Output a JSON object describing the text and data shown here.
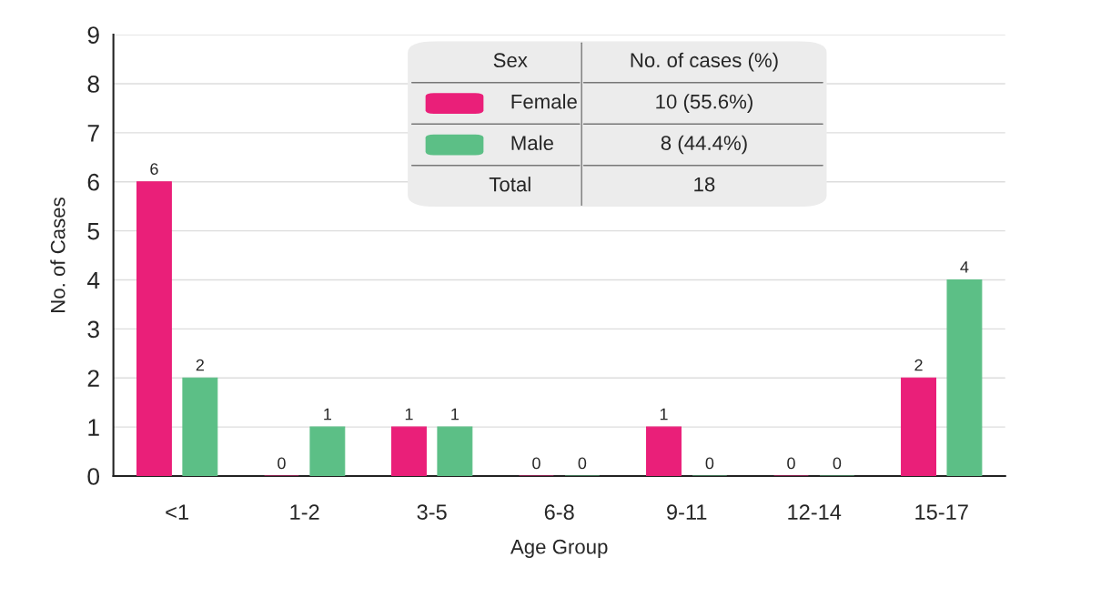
{
  "chart_data": {
    "type": "bar",
    "xlabel": "Age Group",
    "ylabel": "No. of Cases",
    "categories": [
      "<1",
      "1-2",
      "3-5",
      "6-8",
      "9-11",
      "12-14",
      "15-17"
    ],
    "series": [
      {
        "name": "Female",
        "color": "#ea1f79",
        "values": [
          6,
          0,
          1,
          0,
          1,
          0,
          2
        ]
      },
      {
        "name": "Male",
        "color": "#5cbf86",
        "values": [
          2,
          1,
          1,
          0,
          0,
          0,
          4
        ]
      }
    ],
    "ylim": [
      0,
      9
    ],
    "yticks": [
      0,
      1,
      2,
      3,
      4,
      5,
      6,
      7,
      8,
      9
    ],
    "grid": "y",
    "data_labels": true,
    "legend": "top",
    "legend_title": "Sex",
    "annotations": [
      "No. of cases (%)",
      "10 (55.6%)",
      "8 (44.4%)",
      "Total",
      "18"
    ]
  }
}
